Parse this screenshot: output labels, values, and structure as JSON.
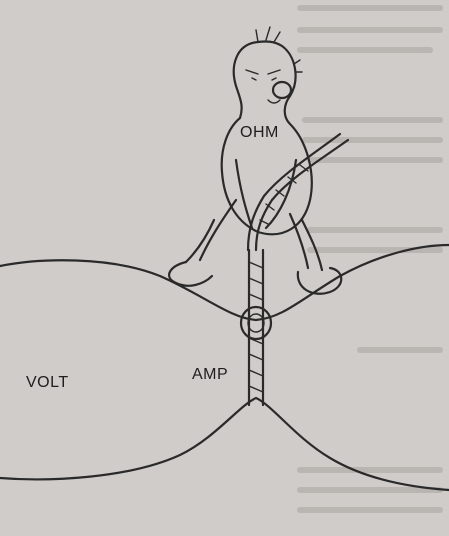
{
  "labels": {
    "ohm": "OHM",
    "volt": "VOLT",
    "amp": "AMP"
  },
  "colors": {
    "paper": "#cfccc9",
    "ink": "#2b2a2a"
  }
}
